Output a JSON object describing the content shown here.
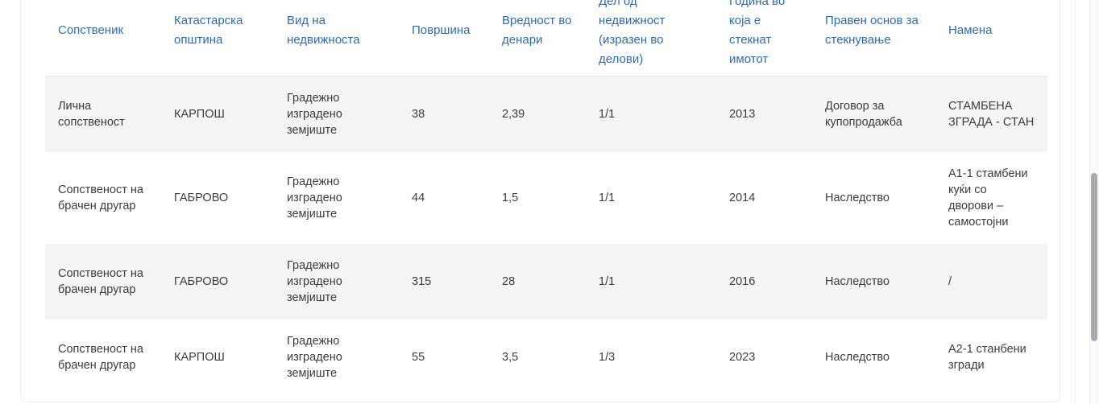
{
  "theme": {
    "header_text_color": "#2a6db5",
    "body_text_color": "#3c3c3c",
    "stripe_row_color": "#f4f4f4"
  },
  "table": {
    "columns": [
      {
        "id": "owner",
        "label": "Сопственик"
      },
      {
        "id": "cadastral-municipality",
        "label": "Катастарска општина"
      },
      {
        "id": "property-type",
        "label": "Вид на недвижноста"
      },
      {
        "id": "area",
        "label": "Површина"
      },
      {
        "id": "value-denars",
        "label": "Вредност во денари"
      },
      {
        "id": "property-share",
        "label": "Дел од недвижност (изразен во делови)"
      },
      {
        "id": "year-acquired",
        "label": "Година во која е стекнат имотот"
      },
      {
        "id": "legal-basis",
        "label": "Правен основ за стекнување"
      },
      {
        "id": "purpose",
        "label": "Намена"
      }
    ],
    "rows": [
      [
        "Лична сопственост",
        "КАРПОШ",
        "Градежно изградено земјиште",
        "38",
        "2,39",
        "1/1",
        "2013",
        "Договор за купопродажба",
        "СТАМБЕНА ЗГРАДА - СТАН"
      ],
      [
        "Сопственост на брачен другар",
        "ГАБРОВО",
        "Градежно изградено земјиште",
        "44",
        "1,5",
        "1/1",
        "2014",
        "Наследство",
        "А1-1 стамбени куќи со дворови – самостојни"
      ],
      [
        "Сопственост на брачен другар",
        "ГАБРОВО",
        "Градежно изградено земјиште",
        "315",
        "28",
        "1/1",
        "2016",
        "Наследство",
        "/"
      ],
      [
        "Сопственост на брачен другар",
        "КАРПОШ",
        "Градежно изградено земјиште",
        "55",
        "3,5",
        "1/3",
        "2023",
        "Наследство",
        "А2-1 станбени згради"
      ]
    ]
  }
}
